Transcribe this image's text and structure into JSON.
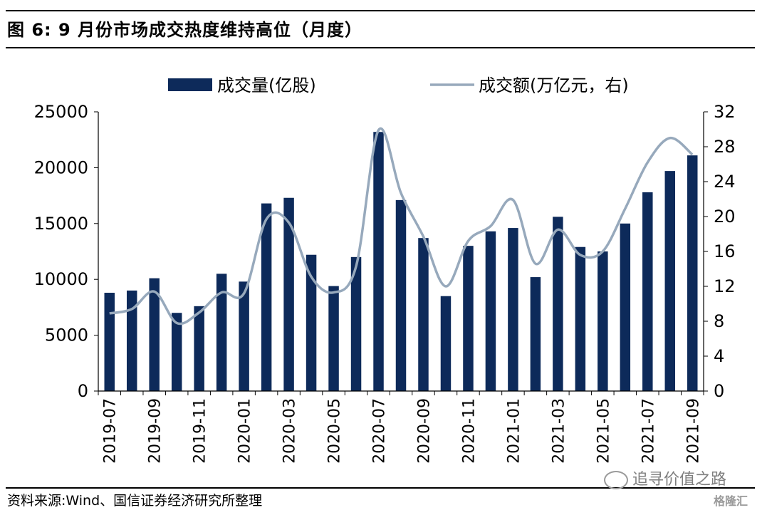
{
  "header": {
    "title": "图 6:  9 月份市场成交热度维持高位（月度）"
  },
  "footer": {
    "source": "资料来源:Wind、国信证券经济研究所整理",
    "watermark": "追寻价值之路",
    "brand": "格隆汇"
  },
  "colors": {
    "bar": "#0d2a5a",
    "line": "#97a9bc",
    "axis": "#000000"
  },
  "chart_data": {
    "type": "bar",
    "categories": [
      "2019-07",
      "2019-08",
      "2019-09",
      "2019-10",
      "2019-11",
      "2019-12",
      "2020-01",
      "2020-02",
      "2020-03",
      "2020-04",
      "2020-05",
      "2020-06",
      "2020-07",
      "2020-08",
      "2020-09",
      "2020-10",
      "2020-11",
      "2020-12",
      "2021-01",
      "2021-02",
      "2021-03",
      "2021-04",
      "2021-05",
      "2021-06",
      "2021-07",
      "2021-08",
      "2021-09"
    ],
    "x_tick_labels": [
      "2019-07",
      "2019-09",
      "2019-11",
      "2020-01",
      "2020-03",
      "2020-05",
      "2020-07",
      "2020-09",
      "2020-11",
      "2021-01",
      "2021-03",
      "2021-05",
      "2021-07",
      "2021-09"
    ],
    "series": [
      {
        "name": "成交量(亿股)",
        "type": "bar",
        "axis": "left",
        "values": [
          8800,
          9000,
          10100,
          7000,
          7600,
          10500,
          9800,
          16800,
          17300,
          12200,
          9400,
          12000,
          23200,
          17100,
          13700,
          8500,
          13000,
          14300,
          14600,
          10200,
          15600,
          12900,
          12500,
          15000,
          17800,
          19700,
          21100
        ]
      },
      {
        "name": "成交额(万亿元，右)",
        "type": "line",
        "axis": "right",
        "values": [
          8.9,
          9.4,
          11.4,
          7.8,
          9.0,
          11.3,
          11.2,
          19.7,
          19.3,
          13.1,
          11.3,
          14.3,
          29.9,
          22.7,
          17.7,
          12.0,
          17.2,
          18.9,
          21.9,
          14.6,
          18.5,
          15.6,
          16.0,
          20.9,
          26.2,
          29.0,
          27.1
        ]
      }
    ],
    "y_left": {
      "lim": [
        0,
        25000
      ],
      "ticks": [
        "0",
        "5000",
        "10000",
        "15000",
        "20000",
        "25000"
      ]
    },
    "y_right": {
      "lim": [
        0,
        32
      ],
      "ticks": [
        "0",
        "4",
        "8",
        "12",
        "16",
        "20",
        "24",
        "28",
        "32"
      ]
    },
    "legend_placement": "top-center",
    "grid": false
  }
}
